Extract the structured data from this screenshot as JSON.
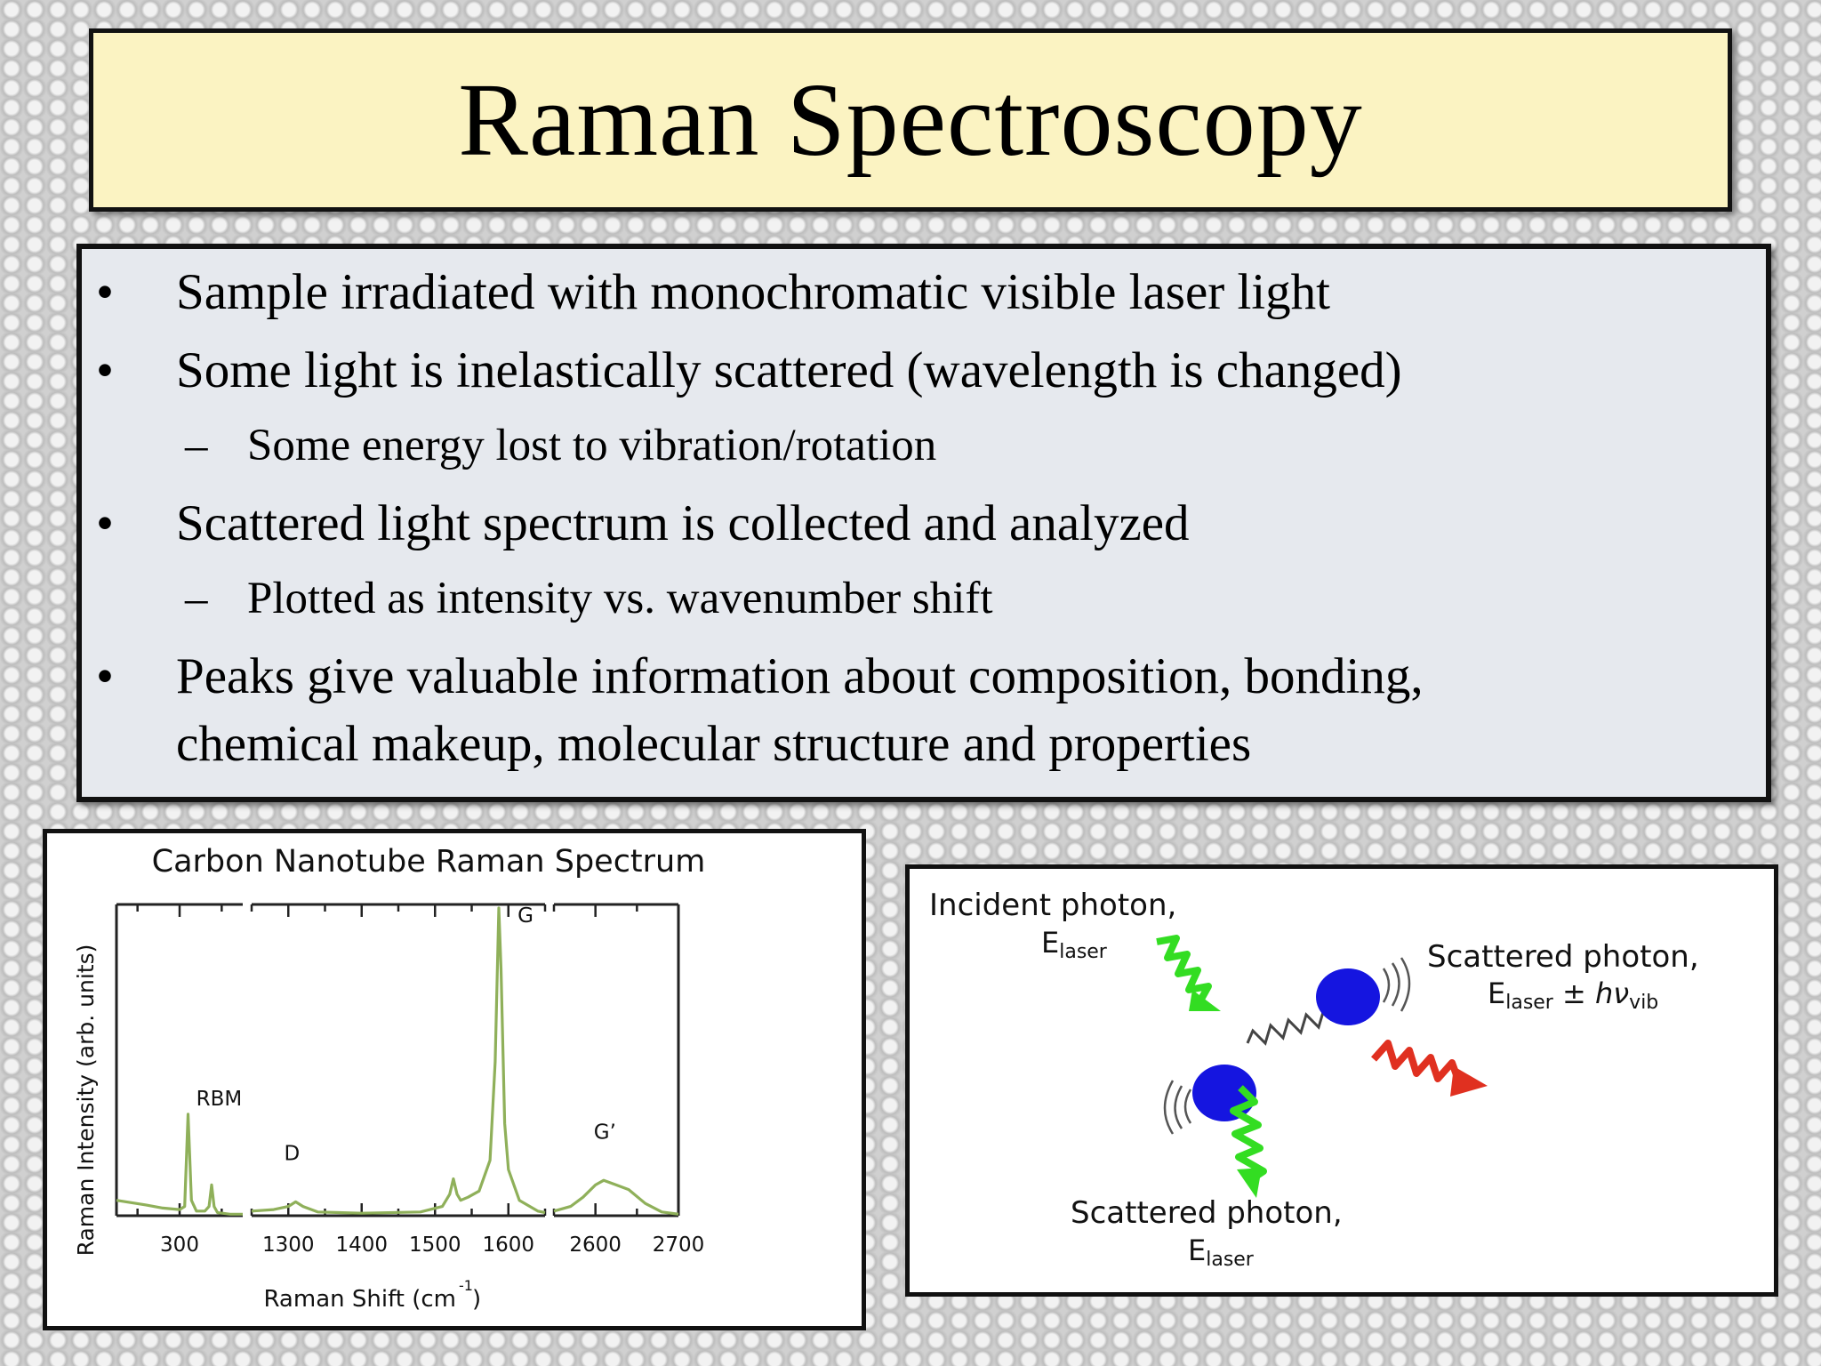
{
  "title": "Raman Spectroscopy",
  "bullets": {
    "b1": "Sample irradiated with monochromatic visible laser light",
    "b2": "Some light is inelastically scattered (wavelength is changed)",
    "b2_sub": "Some energy lost to vibration/rotation",
    "b3": "Scattered light spectrum is collected and analyzed",
    "b3_sub": "Plotted as intensity vs. wavenumber shift",
    "b4_line1": "Peaks give valuable information about composition,  bonding,",
    "b4_line2": "chemical makeup, molecular structure and properties",
    "bullet_symbol": "•",
    "dash_symbol": "–"
  },
  "chart_data": {
    "type": "line",
    "title": "Carbon Nanotube Raman Spectrum",
    "xlabel_main": "Raman Shift (cm",
    "xlabel_sup": "-1",
    "xlabel_close": ")",
    "ylabel": "Raman Intensity (arb. units)",
    "broken_x_axis": true,
    "segments": [
      {
        "range": [
          225,
          375
        ],
        "ticks": [
          "300"
        ],
        "tick_values": [
          300
        ],
        "x": [
          225,
          260,
          280,
          300,
          306,
          310,
          314,
          320,
          330,
          335,
          338,
          341,
          345,
          360,
          375
        ],
        "y": [
          0.05,
          0.035,
          0.025,
          0.02,
          0.03,
          0.33,
          0.05,
          0.015,
          0.015,
          0.03,
          0.1,
          0.03,
          0.01,
          0.005,
          0.005
        ]
      },
      {
        "range": [
          1250,
          1650
        ],
        "ticks": [
          "1300",
          "1400",
          "1500",
          "1600"
        ],
        "tick_values": [
          1300,
          1400,
          1500,
          1600
        ],
        "x": [
          1250,
          1280,
          1300,
          1310,
          1320,
          1340,
          1400,
          1480,
          1510,
          1520,
          1525,
          1530,
          1535,
          1545,
          1560,
          1575,
          1582,
          1587,
          1590,
          1595,
          1600,
          1615,
          1640,
          1650
        ],
        "y": [
          0.015,
          0.02,
          0.03,
          0.045,
          0.03,
          0.012,
          0.008,
          0.012,
          0.03,
          0.07,
          0.12,
          0.07,
          0.05,
          0.06,
          0.08,
          0.18,
          0.5,
          1.0,
          0.8,
          0.3,
          0.15,
          0.05,
          0.015,
          0.01
        ]
      },
      {
        "range": [
          2550,
          2700
        ],
        "ticks": [
          "2600",
          "2700"
        ],
        "tick_values": [
          2600,
          2700
        ],
        "x": [
          2550,
          2570,
          2585,
          2600,
          2610,
          2625,
          2640,
          2660,
          2680,
          2700
        ],
        "y": [
          0.015,
          0.03,
          0.06,
          0.1,
          0.115,
          0.1,
          0.085,
          0.04,
          0.012,
          0.005
        ]
      }
    ],
    "annotations": [
      {
        "label": "RBM",
        "x": 310
      },
      {
        "label": "D",
        "x": 1305
      },
      {
        "label": "G",
        "x": 1587
      },
      {
        "label": "G’",
        "x": 2605
      }
    ],
    "line_color": "#8fb05a"
  },
  "diagram": {
    "incident_label": "Incident photon,",
    "incident_energy": "E",
    "incident_energy_sub": "laser",
    "scattered_vib_label": "Scattered photon,",
    "scattered_vib_energy": "E",
    "scattered_vib_energy_sub": "laser",
    "scattered_vib_pm": " ± ",
    "scattered_vib_h": "hν",
    "scattered_vib_h_sub": "vib",
    "scattered_label": "Scattered photon,",
    "scattered_energy": "E",
    "scattered_energy_sub": "laser",
    "colors": {
      "incident": "#33dd22",
      "scattered_vib": "#e03020",
      "molecule": "#1515e0"
    }
  }
}
